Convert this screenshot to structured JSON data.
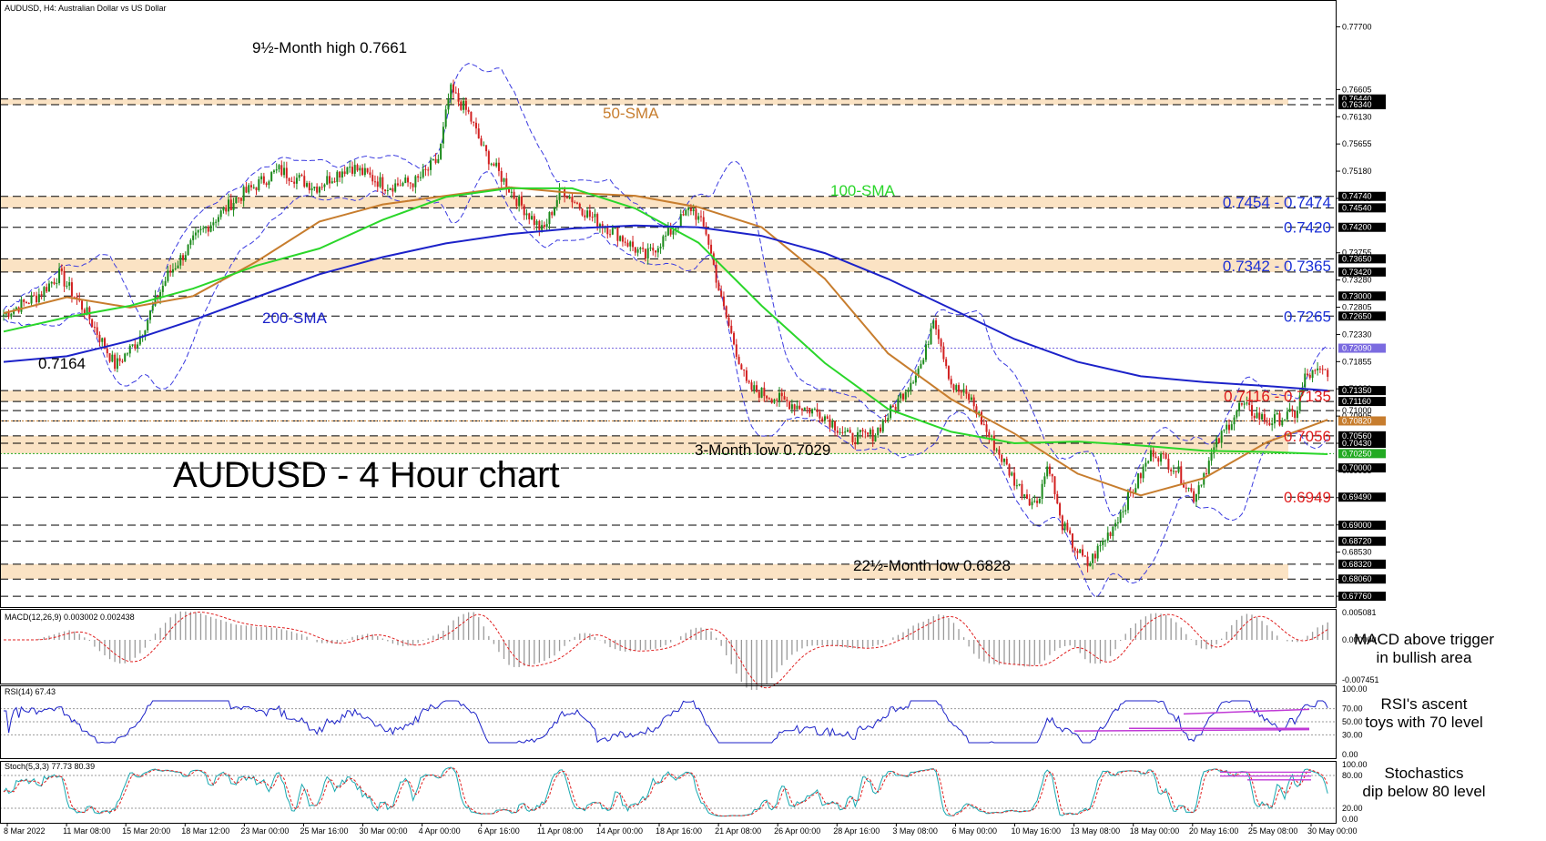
{
  "header": {
    "symbol_title": "AUDUSD, H4:  Australian Dollar vs US Dollar"
  },
  "chart_data": {
    "type": "line",
    "title": "AUDUSD - 4 Hour chart",
    "y_range": [
      0.6765,
      0.7785
    ],
    "x_labels": [
      "8 Mar 2022",
      "11 Mar 08:00",
      "15 Mar 20:00",
      "18 Mar 12:00",
      "23 Mar 00:00",
      "25 Mar 16:00",
      "30 Mar 00:00",
      "4 Apr 00:00",
      "6 Apr 16:00",
      "11 Apr 08:00",
      "14 Apr 00:00",
      "18 Apr 16:00",
      "21 Apr 08:00",
      "26 Apr 00:00",
      "28 Apr 16:00",
      "3 May 08:00",
      "6 May 00:00",
      "10 May 16:00",
      "13 May 08:00",
      "18 May 00:00",
      "20 May 16:00",
      "25 May 08:00",
      "30 May 00:00"
    ],
    "price_axis_labels": [
      "0.77700",
      "0.76605",
      "0.76130",
      "0.75655",
      "0.75180",
      "0.74705",
      "0.73755",
      "0.73280",
      "0.72805",
      "0.72330",
      "0.71855",
      "0.71380",
      "0.71000",
      "0.70905",
      "0.70430",
      "0.69955",
      "0.69480",
      "0.69005",
      "0.68530",
      "0.68055",
      "0.67760"
    ],
    "price_axis_tags": [
      {
        "value": 0.7644,
        "label": "0.76440",
        "color": "#000000"
      },
      {
        "value": 0.7634,
        "label": "0.76340",
        "color": "#000000"
      },
      {
        "value": 0.7474,
        "label": "0.74740",
        "color": "#000000"
      },
      {
        "value": 0.7454,
        "label": "0.74540",
        "color": "#000000"
      },
      {
        "value": 0.742,
        "label": "0.74200",
        "color": "#000000"
      },
      {
        "value": 0.7365,
        "label": "0.73650",
        "color": "#000000"
      },
      {
        "value": 0.7342,
        "label": "0.73420",
        "color": "#000000"
      },
      {
        "value": 0.73,
        "label": "0.73000",
        "color": "#000000"
      },
      {
        "value": 0.7265,
        "label": "0.72650",
        "color": "#000000"
      },
      {
        "value": 0.7209,
        "label": "0.72090",
        "color": "#7b6be0"
      },
      {
        "value": 0.7135,
        "label": "0.71350",
        "color": "#000000"
      },
      {
        "value": 0.7116,
        "label": "0.71160",
        "color": "#000000"
      },
      {
        "value": 0.7082,
        "label": "0.70820",
        "color": "#c77d2e"
      },
      {
        "value": 0.7056,
        "label": "0.70560",
        "color": "#000000"
      },
      {
        "value": 0.7043,
        "label": "0.70430",
        "color": "#000000"
      },
      {
        "value": 0.7025,
        "label": "0.70250",
        "color": "#22aa22"
      },
      {
        "value": 0.7,
        "label": "0.70000",
        "color": "#000000"
      },
      {
        "value": 0.6949,
        "label": "0.69490",
        "color": "#000000"
      },
      {
        "value": 0.69,
        "label": "0.69000",
        "color": "#000000"
      },
      {
        "value": 0.6872,
        "label": "0.68720",
        "color": "#000000"
      },
      {
        "value": 0.6832,
        "label": "0.68320",
        "color": "#000000"
      },
      {
        "value": 0.6806,
        "label": "0.68060",
        "color": "#000000"
      },
      {
        "value": 0.6776,
        "label": "0.67760",
        "color": "#000000"
      }
    ],
    "dashed_levels": [
      0.7644,
      0.7634,
      0.7474,
      0.7454,
      0.742,
      0.7365,
      0.7342,
      0.73,
      0.7265,
      0.7135,
      0.7116,
      0.71,
      0.7082,
      0.7056,
      0.7043,
      0.7,
      0.6949,
      0.69,
      0.6872,
      0.6832,
      0.6806,
      0.6776
    ],
    "zones": [
      {
        "from": 0.7634,
        "to": 0.7644
      },
      {
        "from": 0.7454,
        "to": 0.7474
      },
      {
        "from": 0.7342,
        "to": 0.7365
      },
      {
        "from": 0.7116,
        "to": 0.7135
      },
      {
        "from": 0.7025,
        "to": 0.7056
      },
      {
        "from": 0.6806,
        "to": 0.6832
      }
    ],
    "level_labels": [
      {
        "text": "0.7454 - 0.7474",
        "value": 0.7464,
        "color": "#1a2fd6"
      },
      {
        "text": "0.7420",
        "value": 0.742,
        "color": "#1a2fd6"
      },
      {
        "text": "0.7342 - 0.7365",
        "value": 0.7353,
        "color": "#1a2fd6"
      },
      {
        "text": "0.7265",
        "value": 0.7265,
        "color": "#1a2fd6"
      },
      {
        "text": "0.7116 - 0.7135",
        "value": 0.7126,
        "color": "#e01c1c"
      },
      {
        "text": "0.7056",
        "value": 0.7056,
        "color": "#e01c1c"
      },
      {
        "text": "0.6949",
        "value": 0.6949,
        "color": "#e01c1c"
      }
    ],
    "annotations": {
      "high": {
        "text": "9½-Month high 0.7661",
        "value": 0.7661
      },
      "low_7164": {
        "text": "0.7164",
        "value": 0.7164
      },
      "low_3m": {
        "text": "3-Month low 0.7029",
        "value": 0.7029
      },
      "low_22m": {
        "text": "22½-Month low 0.6828",
        "value": 0.6828
      }
    },
    "series": [
      {
        "name": "50-SMA",
        "color": "#c77d2e",
        "points": [
          [
            0,
            0.727
          ],
          [
            25,
            0.7298
          ],
          [
            50,
            0.728
          ],
          [
            75,
            0.73
          ],
          [
            100,
            0.736
          ],
          [
            125,
            0.743
          ],
          [
            150,
            0.746
          ],
          [
            175,
            0.7475
          ],
          [
            200,
            0.749
          ],
          [
            225,
            0.748
          ],
          [
            250,
            0.7475
          ],
          [
            275,
            0.7455
          ],
          [
            300,
            0.742
          ],
          [
            325,
            0.733
          ],
          [
            350,
            0.72
          ],
          [
            375,
            0.712
          ],
          [
            400,
            0.706
          ],
          [
            425,
            0.699
          ],
          [
            450,
            0.6952
          ],
          [
            475,
            0.6982
          ],
          [
            500,
            0.7045
          ],
          [
            524,
            0.7084
          ]
        ]
      },
      {
        "name": "100-SMA",
        "color": "#2ad62a",
        "points": [
          [
            0,
            0.7238
          ],
          [
            25,
            0.7263
          ],
          [
            50,
            0.7283
          ],
          [
            75,
            0.7313
          ],
          [
            100,
            0.7353
          ],
          [
            125,
            0.7383
          ],
          [
            150,
            0.7433
          ],
          [
            175,
            0.7473
          ],
          [
            200,
            0.7488
          ],
          [
            225,
            0.7488
          ],
          [
            250,
            0.7453
          ],
          [
            275,
            0.7393
          ],
          [
            300,
            0.7283
          ],
          [
            325,
            0.7183
          ],
          [
            350,
            0.7103
          ],
          [
            375,
            0.7063
          ],
          [
            400,
            0.7043
          ],
          [
            425,
            0.7046
          ],
          [
            450,
            0.7039
          ],
          [
            475,
            0.703
          ],
          [
            500,
            0.7028
          ],
          [
            524,
            0.7024
          ]
        ]
      },
      {
        "name": "200-SMA",
        "color": "#1c22c9",
        "points": [
          [
            0,
            0.7185
          ],
          [
            25,
            0.7195
          ],
          [
            50,
            0.7222
          ],
          [
            75,
            0.7258
          ],
          [
            100,
            0.7298
          ],
          [
            125,
            0.7338
          ],
          [
            150,
            0.7368
          ],
          [
            175,
            0.7392
          ],
          [
            200,
            0.7408
          ],
          [
            225,
            0.7418
          ],
          [
            250,
            0.7423
          ],
          [
            275,
            0.742
          ],
          [
            300,
            0.7405
          ],
          [
            325,
            0.7375
          ],
          [
            350,
            0.733
          ],
          [
            375,
            0.7278
          ],
          [
            400,
            0.7225
          ],
          [
            425,
            0.7185
          ],
          [
            450,
            0.716
          ],
          [
            475,
            0.715
          ],
          [
            500,
            0.7143
          ],
          [
            524,
            0.7135
          ]
        ]
      }
    ],
    "indicators": {
      "macd": {
        "title": "MACD(12,26,9) 0.003002 0.002438",
        "axis_labels": [
          "0.005081",
          "0.000000",
          "-0.007451"
        ],
        "note_line1": "MACD above trigger",
        "note_line2": "in bullish area"
      },
      "rsi": {
        "title": "RSI(14) 67.43",
        "axis_labels": [
          "100.00",
          "70.00",
          "50.00",
          "30.00",
          "0.00"
        ],
        "note_line1": "RSI's ascent",
        "note_line2": "toys with 70 level"
      },
      "stoch": {
        "title": "Stoch(5,3,3) 77.73 80.39",
        "axis_labels": [
          "100.00",
          "80.00",
          "20.00",
          "0.00"
        ],
        "note_line1": "Stochastics",
        "note_line2": "dip below 80 level"
      }
    },
    "colors": {
      "bull_candle": "#1b8a1b",
      "bear_candle": "#d22020",
      "zone": "#fbe3c4",
      "bollinger": "#3a3ae0",
      "rsi": "#1c22c9",
      "stoch_main": "#18a8b0",
      "stoch_signal": "#e02020",
      "trendline": "#c03ad6"
    }
  }
}
